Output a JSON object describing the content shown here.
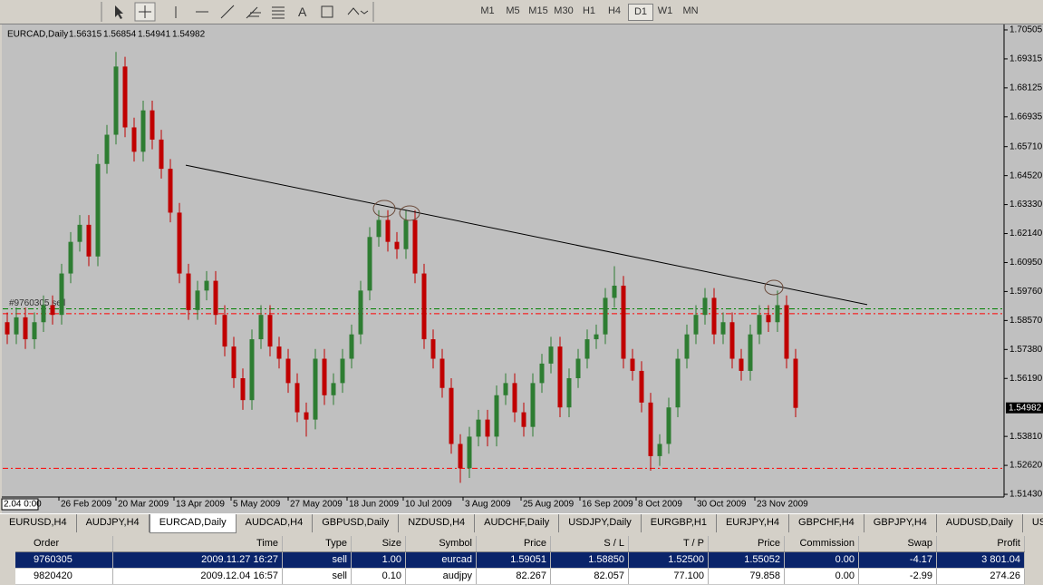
{
  "chart_data": {
    "type": "candlestick",
    "symbol": "EURCAD,Daily",
    "ohlc": [
      1.56315,
      1.56854,
      1.54941,
      1.54982
    ],
    "order_label": "#9760305 sell",
    "cursor_time": "2.04 0:00",
    "up_color": "#2e7d32",
    "down_color": "#c00000",
    "background": "#c0c0c0",
    "ylim": [
      1.5132,
      1.7069
    ],
    "yticks": [
      1.70505,
      1.69315,
      1.68125,
      1.66935,
      {
        "value": 1.6571,
        "label": "1.65710"
      },
      {
        "value": 1.6452,
        "label": "1.64520"
      },
      {
        "value": 1.6333,
        "label": "1.63330"
      },
      {
        "value": 1.6214,
        "label": "1.62140"
      },
      {
        "value": 1.6095,
        "label": "1.60950"
      },
      {
        "value": 1.5976,
        "label": "1.59760"
      },
      {
        "value": 1.5857,
        "label": "1.58570"
      },
      {
        "value": 1.5738,
        "label": "1.57380"
      },
      {
        "value": 1.5619,
        "label": "1.56190"
      },
      {
        "value": 1.5381,
        "label": "1.53810"
      },
      {
        "value": 1.5262,
        "label": "1.52620"
      },
      {
        "value": 1.5143,
        "label": "1.51430"
      }
    ],
    "xticks": [
      {
        "value": 5.7,
        "label": "26 Feb 2009"
      },
      {
        "value": 12.0,
        "label": "20 Mar 2009"
      },
      {
        "value": 18.4,
        "label": "13 Apr 2009"
      },
      {
        "value": 24.7,
        "label": "5 May 2009"
      },
      {
        "value": 31.0,
        "label": "27 May 2009"
      },
      {
        "value": 37.5,
        "label": "18 Jun 2009"
      },
      {
        "value": 43.7,
        "label": "10 Jul 2009"
      },
      {
        "value": 50.3,
        "label": "3 Aug 2009"
      },
      {
        "value": 56.7,
        "label": "25 Aug 2009"
      },
      {
        "value": 63.2,
        "label": "16 Sep 2009"
      },
      {
        "value": 69.4,
        "label": "8 Oct 2009"
      },
      {
        "value": 75.9,
        "label": "30 Oct 2009"
      },
      {
        "value": 82.5,
        "label": "23 Nov 2009"
      }
    ],
    "trendline": {
      "x": [
        19.7,
        94.9
      ],
      "y": [
        1.6495,
        1.5922
      ]
    },
    "open": [
      1.585,
      1.58,
      1.587,
      1.578,
      1.585,
      1.592,
      1.588,
      1.605,
      1.618,
      1.625,
      1.612,
      1.65,
      1.662,
      1.69,
      1.665,
      1.655,
      1.672,
      1.66,
      1.648,
      1.63,
      1.605,
      1.59,
      1.598,
      1.602,
      1.588,
      1.575,
      1.562,
      1.553,
      1.578,
      1.588,
      1.575,
      1.57,
      1.56,
      1.548,
      1.545,
      1.57,
      1.555,
      1.56,
      1.57,
      1.58,
      1.598,
      1.62,
      1.627,
      1.618,
      1.615,
      1.627,
      1.605,
      1.578,
      1.57,
      1.558,
      1.535,
      1.525,
      1.538,
      1.545,
      1.538,
      1.555,
      1.56,
      1.548,
      1.542,
      1.56,
      1.568,
      1.575,
      1.55,
      1.562,
      1.57,
      1.578,
      1.58,
      1.595,
      1.6,
      1.57,
      1.565,
      1.552,
      1.53,
      1.535,
      1.55,
      1.57,
      1.58,
      1.588,
      1.595,
      1.58,
      1.585,
      1.57,
      1.565,
      1.58,
      1.588,
      1.585,
      1.592,
      1.57
    ],
    "high": [
      1.589,
      1.591,
      1.591,
      1.589,
      1.596,
      1.596,
      1.609,
      1.622,
      1.629,
      1.629,
      1.654,
      1.666,
      1.696,
      1.694,
      1.669,
      1.676,
      1.676,
      1.664,
      1.652,
      1.634,
      1.609,
      1.602,
      1.606,
      1.606,
      1.592,
      1.579,
      1.566,
      1.582,
      1.592,
      1.592,
      1.579,
      1.574,
      1.564,
      1.552,
      1.574,
      1.574,
      1.564,
      1.574,
      1.584,
      1.602,
      1.624,
      1.631,
      1.631,
      1.622,
      1.631,
      1.631,
      1.609,
      1.582,
      1.574,
      1.562,
      1.539,
      1.542,
      1.549,
      1.549,
      1.559,
      1.564,
      1.564,
      1.552,
      1.564,
      1.572,
      1.579,
      1.579,
      1.566,
      1.574,
      1.582,
      1.584,
      1.599,
      1.608,
      1.604,
      1.574,
      1.569,
      1.556,
      1.539,
      1.554,
      1.574,
      1.584,
      1.592,
      1.599,
      1.599,
      1.589,
      1.589,
      1.574,
      1.584,
      1.592,
      1.592,
      1.598,
      1.596,
      1.574
    ],
    "low": [
      1.576,
      1.576,
      1.574,
      1.574,
      1.581,
      1.584,
      1.584,
      1.601,
      1.614,
      1.608,
      1.608,
      1.646,
      1.658,
      1.661,
      1.651,
      1.651,
      1.656,
      1.644,
      1.626,
      1.601,
      1.586,
      1.586,
      1.594,
      1.584,
      1.571,
      1.558,
      1.549,
      1.549,
      1.574,
      1.571,
      1.566,
      1.556,
      1.544,
      1.538,
      1.541,
      1.551,
      1.551,
      1.556,
      1.566,
      1.576,
      1.594,
      1.616,
      1.614,
      1.611,
      1.611,
      1.601,
      1.574,
      1.566,
      1.554,
      1.531,
      1.519,
      1.521,
      1.534,
      1.534,
      1.534,
      1.551,
      1.544,
      1.538,
      1.538,
      1.556,
      1.564,
      1.546,
      1.546,
      1.558,
      1.566,
      1.574,
      1.576,
      1.591,
      1.566,
      1.561,
      1.548,
      1.524,
      1.526,
      1.531,
      1.546,
      1.566,
      1.576,
      1.584,
      1.576,
      1.576,
      1.566,
      1.561,
      1.561,
      1.576,
      1.581,
      1.581,
      1.566,
      1.546
    ],
    "close": [
      1.58,
      1.587,
      1.578,
      1.585,
      1.592,
      1.588,
      1.605,
      1.618,
      1.625,
      1.612,
      1.65,
      1.662,
      1.69,
      1.665,
      1.655,
      1.672,
      1.66,
      1.648,
      1.63,
      1.605,
      1.59,
      1.598,
      1.602,
      1.588,
      1.575,
      1.562,
      1.553,
      1.578,
      1.588,
      1.575,
      1.57,
      1.56,
      1.548,
      1.545,
      1.57,
      1.555,
      1.56,
      1.57,
      1.58,
      1.598,
      1.62,
      1.627,
      1.618,
      1.615,
      1.627,
      1.605,
      1.578,
      1.57,
      1.558,
      1.535,
      1.525,
      1.538,
      1.545,
      1.538,
      1.555,
      1.56,
      1.548,
      1.542,
      1.56,
      1.568,
      1.575,
      1.55,
      1.562,
      1.57,
      1.578,
      1.58,
      1.595,
      1.6,
      1.57,
      1.565,
      1.552,
      1.53,
      1.535,
      1.55,
      1.57,
      1.58,
      1.588,
      1.595,
      1.58,
      1.585,
      1.57,
      1.565,
      1.58,
      1.588,
      1.585,
      1.592,
      1.57,
      1.54982
    ]
  },
  "toolbar": {
    "text_tool": "A",
    "timeframes": [
      "M1",
      "M5",
      "M15",
      "M30",
      "H1",
      "H4",
      "D1",
      "W1",
      "MN"
    ],
    "active_timeframe": "D1"
  },
  "tabs": {
    "items": [
      "EURUSD,H4",
      "AUDJPY,H4",
      "EURCAD,Daily",
      "AUDCAD,H4",
      "GBPUSD,Daily",
      "NZDUSD,H4",
      "AUDCHF,Daily",
      "USDJPY,Daily",
      "EURGBP,H1",
      "EURJPY,H4",
      "GBPCHF,H4",
      "GBPJPY,H4",
      "AUDUSD,Daily",
      "USDC"
    ],
    "active": "EURCAD,Daily"
  },
  "orders": {
    "columns": [
      "Order",
      "Time",
      "Type",
      "Size",
      "Symbol",
      "Price",
      "S / L",
      "T / P",
      "Price",
      "Commission",
      "Swap",
      "Profit"
    ],
    "rows": [
      [
        "9760305",
        "2009.11.27 16:27",
        "sell",
        "1.00",
        "eurcad",
        "1.59051",
        "1.58850",
        "1.52500",
        "1.55052",
        "0.00",
        "-4.17",
        "3 801.04"
      ],
      [
        "9820420",
        "2009.12.04 16:57",
        "sell",
        "0.10",
        "audjpy",
        "82.267",
        "82.057",
        "77.100",
        "79.858",
        "0.00",
        "-2.99",
        "274.26"
      ]
    ]
  }
}
